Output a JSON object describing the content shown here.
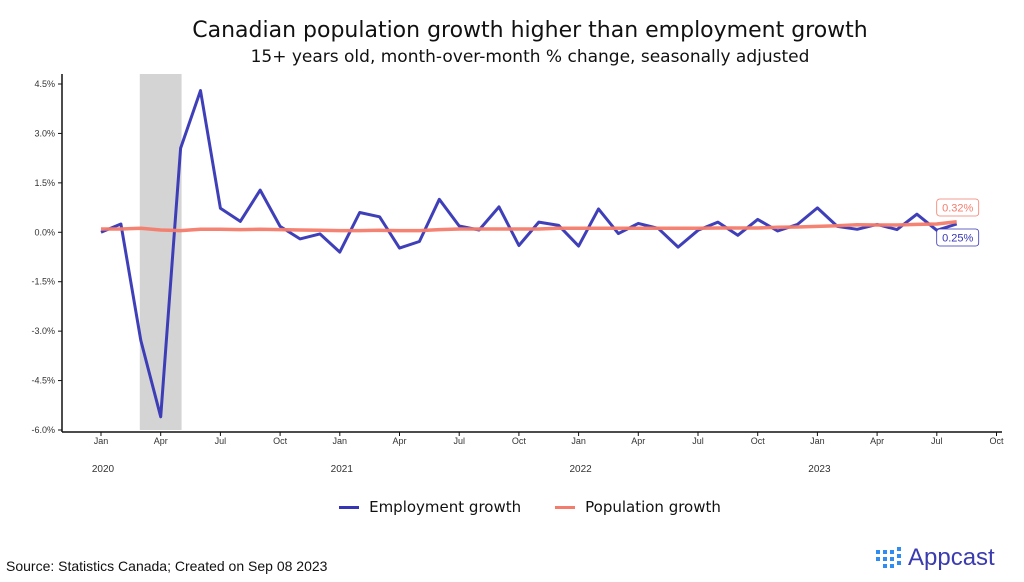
{
  "chart_data": {
    "type": "line",
    "title": "Canadian population growth higher than employment growth",
    "subtitle": "15+ years old, month-over-month % change, seasonally adjusted",
    "xlabel": "",
    "ylabel": "",
    "ylim": [
      -6.0,
      4.5
    ],
    "yticks": [
      "4.5%",
      "3.0%",
      "1.5%",
      "0.0%",
      "-1.5%",
      "-3.0%",
      "-4.5%",
      "-6.0%"
    ],
    "ytick_values": [
      4.5,
      3.0,
      1.5,
      0.0,
      -1.5,
      -3.0,
      -4.5,
      -6.0
    ],
    "xticks": [
      "Jan",
      "Apr",
      "Jul",
      "Oct",
      "Jan",
      "Apr",
      "Jul",
      "Oct",
      "Jan",
      "Apr",
      "Jul",
      "Oct",
      "Jan",
      "Apr",
      "Jul",
      "Oct"
    ],
    "years": [
      "2020",
      "2021",
      "2022",
      "2023"
    ],
    "x_start": "2020-01",
    "shaded_region": {
      "from_month_index": 2,
      "to_month_index": 4
    },
    "series": [
      {
        "name": "Employment growth",
        "color": "#3535b5",
        "values": [
          0.0,
          0.25,
          -3.28,
          -5.6,
          2.55,
          4.3,
          0.73,
          0.33,
          1.28,
          0.18,
          -0.2,
          -0.05,
          -0.6,
          0.6,
          0.47,
          -0.48,
          -0.28,
          1.0,
          0.19,
          0.07,
          0.77,
          -0.4,
          0.31,
          0.21,
          -0.42,
          0.71,
          -0.04,
          0.27,
          0.12,
          -0.45,
          0.06,
          0.31,
          -0.09,
          0.39,
          0.04,
          0.24,
          0.74,
          0.18,
          0.09,
          0.24,
          0.08,
          0.55,
          0.06,
          0.25
        ],
        "end_label": "0.25%"
      },
      {
        "name": "Population growth",
        "color": "#f47c6c",
        "values": [
          0.1,
          0.1,
          0.12,
          0.07,
          0.05,
          0.09,
          0.09,
          0.08,
          0.09,
          0.08,
          0.07,
          0.06,
          0.05,
          0.05,
          0.06,
          0.05,
          0.05,
          0.08,
          0.1,
          0.1,
          0.1,
          0.1,
          0.1,
          0.12,
          0.12,
          0.12,
          0.12,
          0.12,
          0.12,
          0.12,
          0.12,
          0.13,
          0.13,
          0.13,
          0.15,
          0.16,
          0.18,
          0.2,
          0.23,
          0.22,
          0.22,
          0.24,
          0.25,
          0.32
        ],
        "end_label": "0.32%"
      }
    ],
    "legend_position": "bottom"
  },
  "source": "Source: Statistics Canada; Created on Sep 08 2023",
  "logo_text": "Appcast"
}
